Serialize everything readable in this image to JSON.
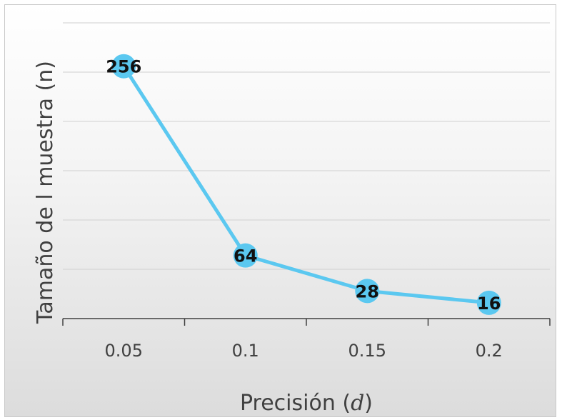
{
  "chart_data": {
    "type": "line",
    "title": "",
    "xlabel": "Precisión",
    "xlabel_symbol": "d",
    "ylabel": "Tamaño de l muestra (n)",
    "categories": [
      "0.05",
      "0.1",
      "0.15",
      "0.2"
    ],
    "series": [
      {
        "values": [
          256,
          64,
          28,
          16
        ],
        "data_labels": [
          "256",
          "64",
          "28",
          "16"
        ]
      }
    ],
    "ylim": [
      0,
      300
    ],
    "y_tick_labels_shown": false,
    "grid": true,
    "legend": "none",
    "colors": {
      "line": "#5bc8f0",
      "marker": "#5bc8f0",
      "grid": "#d0d0d0",
      "axis": "#404040"
    }
  }
}
